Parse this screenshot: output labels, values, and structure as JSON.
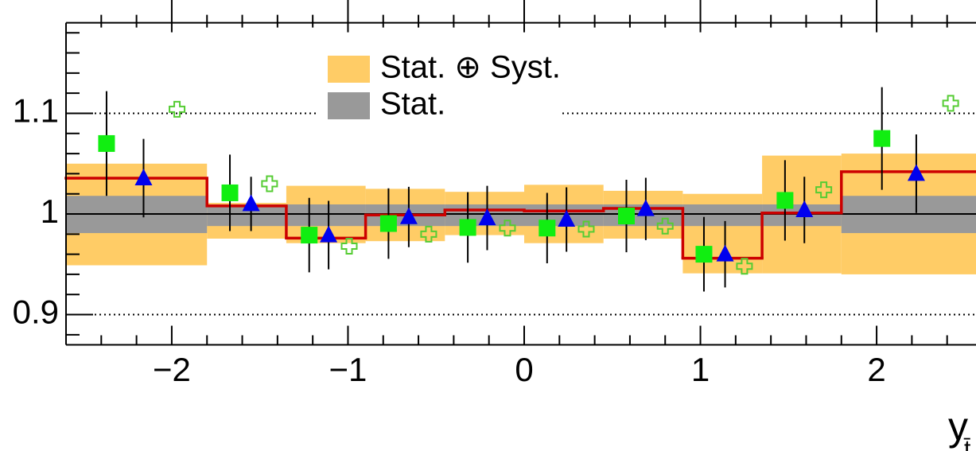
{
  "chart_data": {
    "type": "step",
    "x_label": "y",
    "x_label_sub": "t̄",
    "xlim": [
      -2.6,
      2.6
    ],
    "ylim": [
      0.87,
      1.19
    ],
    "xticks": [
      {
        "value": -2,
        "label": "−2"
      },
      {
        "value": -1,
        "label": "−1"
      },
      0,
      1,
      2
    ],
    "xminorticks": [
      -2.4,
      -2.2,
      -1.8,
      -1.6,
      -1.4,
      -1.2,
      -0.8,
      -0.6,
      -0.4,
      -0.2,
      0.2,
      0.4,
      0.6,
      0.8,
      1.2,
      1.4,
      1.6,
      1.8,
      2.2,
      2.4
    ],
    "yticks": [
      0.9,
      1,
      1.1
    ],
    "yminorticks": [
      0.88,
      0.92,
      0.94,
      0.96,
      0.98,
      1.02,
      1.04,
      1.06,
      1.08,
      1.12,
      1.14,
      1.16,
      1.18
    ],
    "grid": true,
    "reference": 1,
    "bins": [
      -2.6,
      -1.8,
      -1.35,
      -0.9,
      -0.45,
      0,
      0.45,
      0.9,
      1.35,
      1.8,
      2.6
    ],
    "bands": [
      {
        "name": "Stat. ⊕ Syst.",
        "color": "#ffcc66",
        "lower": [
          0.949,
          0.9755,
          0.971,
          0.973,
          0.979,
          0.971,
          0.9755,
          0.941,
          0.941,
          0.94
        ],
        "upper": [
          1.05,
          1.011,
          1.028,
          1.025,
          1.022,
          1.029,
          1.023,
          1.02,
          1.058,
          1.06
        ]
      },
      {
        "name": "Stat.",
        "color": "#999999",
        "lower": [
          0.981,
          0.988,
          0.988,
          0.988,
          0.988,
          0.988,
          0.988,
          0.988,
          0.988,
          0.981
        ],
        "upper": [
          1.018,
          1.0095,
          1.0095,
          1.0095,
          1.0095,
          1.0095,
          1.0095,
          1.0095,
          1.0095,
          1.018
        ]
      }
    ],
    "step": {
      "color": "#cc0000",
      "values": [
        1.0356,
        1.008,
        0.976,
        0.999,
        1.004,
        1.003,
        1.0055,
        0.956,
        1.001,
        1.042
      ]
    },
    "points": [
      {
        "marker": "square",
        "color": "#11ee11",
        "x": [
          -2.37,
          -1.67,
          -1.22,
          -0.77,
          -0.32,
          0.13,
          0.58,
          1.02,
          1.48,
          2.03
        ],
        "values": [
          1.07,
          1.021,
          0.979,
          0.9905,
          0.9866,
          0.986,
          0.998,
          0.96,
          1.0135,
          1.075
        ],
        "errors": [
          0.052,
          0.038,
          0.037,
          0.035,
          0.035,
          0.035,
          0.036,
          0.037,
          0.04,
          0.051
        ]
      },
      {
        "marker": "triangle",
        "color": "#0000ee",
        "x": [
          -2.16,
          -1.55,
          -1.11,
          -0.655,
          -0.21,
          0.24,
          0.69,
          1.14,
          1.59,
          2.225
        ],
        "values": [
          1.0356,
          1.01,
          0.979,
          0.997,
          0.996,
          0.9945,
          1.005,
          0.96,
          1.004,
          1.04
        ],
        "errors": [
          0.039,
          0.027,
          0.034,
          0.03,
          0.032,
          0.032,
          0.031,
          0.033,
          0.033,
          0.039
        ]
      },
      {
        "marker": "cross",
        "color": "#55cc33",
        "x": [
          -1.97,
          -1.445,
          -0.993,
          -0.542,
          -0.095,
          0.352,
          0.8,
          1.25,
          1.7,
          2.42
        ],
        "values": [
          1.104,
          1.03,
          0.968,
          0.98,
          0.986,
          0.985,
          0.988,
          0.948,
          1.024,
          1.11
        ]
      }
    ]
  }
}
